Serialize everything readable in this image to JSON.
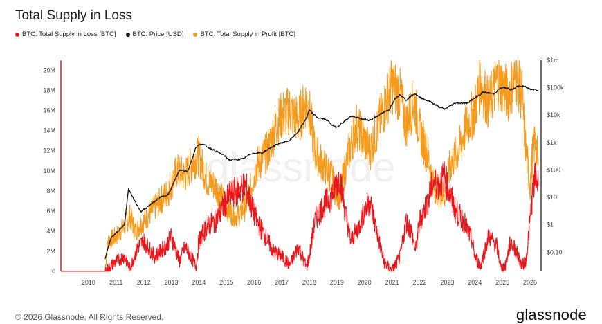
{
  "chart_data": {
    "type": "line",
    "title": "Total Supply in Loss",
    "watermark": "glassnode",
    "legend_position": "top-left",
    "grid": false,
    "x_ticks": [
      "2010",
      "2011",
      "2012",
      "2013",
      "2014",
      "2015",
      "2016",
      "2017",
      "2018",
      "2019",
      "2020",
      "2021",
      "2022",
      "2023",
      "2024",
      "2025",
      "2026"
    ],
    "x_range": [
      2009.0,
      2026.4
    ],
    "y_left": {
      "ticks": [
        "0",
        "2M",
        "4M",
        "6M",
        "8M",
        "10M",
        "12M",
        "14M",
        "16M",
        "18M",
        "20M"
      ],
      "range": [
        0,
        21000000
      ]
    },
    "y_right": {
      "scale": "log",
      "ticks": [
        "$0.10",
        "$1",
        "$10",
        "$100",
        "$1k",
        "$10k",
        "$100k",
        "$1m"
      ],
      "range": [
        0.02,
        1000000
      ]
    },
    "series": [
      {
        "name": "BTC: Total Supply in Loss [BTC]",
        "color": "#e8171c",
        "axis": "left",
        "x": [
          2009.0,
          2010.6,
          2010.8,
          2011.0,
          2011.3,
          2011.5,
          2011.8,
          2012.0,
          2012.4,
          2012.8,
          2013.0,
          2013.3,
          2013.5,
          2013.9,
          2014.0,
          2014.3,
          2014.6,
          2014.9,
          2015.1,
          2015.4,
          2015.7,
          2015.9,
          2016.1,
          2016.4,
          2016.7,
          2017.0,
          2017.3,
          2017.6,
          2017.9,
          2018.0,
          2018.2,
          2018.5,
          2018.8,
          2018.95,
          2019.1,
          2019.3,
          2019.5,
          2019.8,
          2020.0,
          2020.2,
          2020.4,
          2020.7,
          2020.9,
          2021.0,
          2021.3,
          2021.5,
          2021.7,
          2021.85,
          2022.0,
          2022.3,
          2022.5,
          2022.7,
          2022.9,
          2023.0,
          2023.3,
          2023.6,
          2023.9,
          2024.0,
          2024.2,
          2024.5,
          2024.8,
          2024.95,
          2025.1,
          2025.3,
          2025.5,
          2025.7,
          2025.85,
          2026.0,
          2026.1,
          2026.2,
          2026.3
        ],
        "values": [
          0,
          0,
          500000,
          1000000,
          1500000,
          300000,
          2500000,
          3000000,
          1500000,
          2500000,
          3500000,
          1000000,
          2500000,
          500000,
          3000000,
          4500000,
          5000000,
          6500000,
          7500000,
          8000000,
          8500000,
          6500000,
          5000000,
          3500000,
          2000000,
          1500000,
          600000,
          2500000,
          400000,
          1500000,
          5000000,
          6500000,
          7500000,
          8500000,
          9500000,
          6000000,
          3000000,
          4500000,
          6000000,
          7000000,
          4500000,
          1000000,
          300000,
          100000,
          1500000,
          5000000,
          4000000,
          2000000,
          5000000,
          7000000,
          9000000,
          8500000,
          9500000,
          8500000,
          6000000,
          5000000,
          3000000,
          1500000,
          500000,
          3500000,
          2500000,
          300000,
          500000,
          3000000,
          2000000,
          600000,
          1000000,
          5000000,
          8000000,
          9500000,
          8500000
        ]
      },
      {
        "name": "BTC: Price [USD]",
        "color": "#111111",
        "axis": "right",
        "x": [
          2010.6,
          2010.8,
          2011.0,
          2011.3,
          2011.45,
          2011.6,
          2011.9,
          2012.2,
          2012.6,
          2012.9,
          2013.3,
          2013.6,
          2013.9,
          2014.1,
          2014.5,
          2014.9,
          2015.1,
          2015.6,
          2015.9,
          2016.3,
          2016.6,
          2016.9,
          2017.3,
          2017.6,
          2017.9,
          2018.0,
          2018.3,
          2018.6,
          2018.9,
          2019.0,
          2019.5,
          2019.9,
          2020.2,
          2020.6,
          2020.9,
          2021.1,
          2021.3,
          2021.5,
          2021.8,
          2022.0,
          2022.4,
          2022.7,
          2022.9,
          2023.3,
          2023.7,
          2024.0,
          2024.3,
          2024.7,
          2024.9,
          2025.1,
          2025.3,
          2025.6,
          2025.8,
          2026.0,
          2026.2,
          2026.3
        ],
        "values": [
          0.06,
          0.3,
          0.5,
          1,
          20,
          10,
          3,
          5,
          10,
          13,
          100,
          90,
          700,
          900,
          550,
          350,
          230,
          250,
          400,
          420,
          650,
          900,
          1200,
          2500,
          8000,
          15000,
          8000,
          7000,
          3800,
          3600,
          9000,
          7300,
          6500,
          11000,
          16000,
          40000,
          58000,
          35000,
          61000,
          45000,
          30000,
          20000,
          16500,
          28000,
          27000,
          42000,
          68000,
          60000,
          95000,
          100000,
          85000,
          115000,
          110000,
          90000,
          85000,
          78000
        ]
      },
      {
        "name": "BTC: Total Supply in Profit [BTC]",
        "color": "#f49a1c",
        "axis": "left",
        "x": [
          2009.0,
          2010.6,
          2010.7,
          2011.0,
          2011.3,
          2011.5,
          2011.7,
          2012.0,
          2012.3,
          2012.6,
          2012.9,
          2013.2,
          2013.5,
          2013.8,
          2014.0,
          2014.3,
          2014.6,
          2014.9,
          2015.1,
          2015.4,
          2015.7,
          2015.9,
          2016.1,
          2016.5,
          2016.8,
          2017.0,
          2017.3,
          2017.6,
          2017.9,
          2018.0,
          2018.2,
          2018.5,
          2018.8,
          2018.95,
          2019.1,
          2019.4,
          2019.7,
          2020.0,
          2020.2,
          2020.5,
          2020.8,
          2021.0,
          2021.3,
          2021.5,
          2021.8,
          2022.0,
          2022.3,
          2022.5,
          2022.7,
          2022.9,
          2023.1,
          2023.4,
          2023.7,
          2024.0,
          2024.2,
          2024.5,
          2024.8,
          2025.0,
          2025.2,
          2025.5,
          2025.7,
          2025.85,
          2026.0,
          2026.1,
          2026.2,
          2026.3
        ],
        "values": [
          0,
          0,
          3000000,
          3500000,
          4500000,
          5500000,
          4000000,
          5000000,
          6000000,
          7000000,
          8000000,
          10000000,
          9500000,
          11000000,
          11500000,
          9000000,
          8500000,
          7000000,
          6000000,
          5500000,
          6500000,
          8500000,
          10500000,
          12000000,
          14500000,
          15500000,
          16000000,
          15000000,
          17000000,
          16000000,
          12000000,
          10500000,
          9500000,
          8000000,
          7500000,
          11500000,
          14500000,
          13000000,
          12000000,
          14500000,
          17000000,
          18500000,
          17500000,
          14500000,
          17000000,
          14000000,
          11500000,
          8500000,
          8000000,
          7500000,
          10500000,
          12000000,
          14500000,
          16000000,
          19000000,
          16500000,
          19000000,
          18500000,
          17500000,
          19500000,
          17500000,
          12000000,
          8500000,
          12000000,
          13000000,
          10500000
        ]
      }
    ]
  },
  "footer": {
    "copyright": "© 2026 Glassnode. All Rights Reserved.",
    "brand": "glassnode"
  }
}
